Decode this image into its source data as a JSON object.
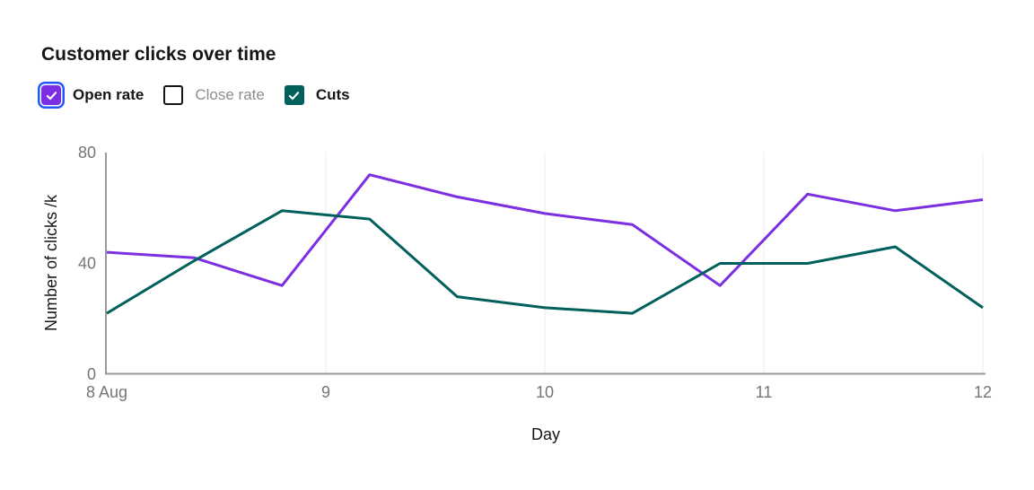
{
  "title": "Customer clicks over time",
  "legend": {
    "items": [
      {
        "label": "Open rate",
        "checked": true,
        "focused": true,
        "color": "#7c2fe0"
      },
      {
        "label": "Close rate",
        "checked": false,
        "focused": false,
        "color": "#ffffff"
      },
      {
        "label": "Cuts",
        "checked": true,
        "focused": false,
        "color": "#00605c"
      }
    ]
  },
  "chart_data": {
    "type": "line",
    "title": "Customer clicks over time",
    "xlabel": "Day",
    "ylabel": "Number of clicks /k",
    "xlim": [
      8,
      12
    ],
    "ylim": [
      0,
      80
    ],
    "grid": "vertical-only",
    "legend_position": "top",
    "x": [
      8.0,
      8.4,
      8.8,
      9.2,
      9.6,
      10.0,
      10.4,
      10.8,
      11.2,
      11.6,
      12.0
    ],
    "series": [
      {
        "name": "Open rate",
        "color": "#7c2fe0",
        "values": [
          44,
          42,
          32,
          72,
          64,
          58,
          54,
          32,
          65,
          59,
          63
        ]
      },
      {
        "name": "Cuts",
        "color": "#00605c",
        "values": [
          22,
          41,
          59,
          56,
          28,
          24,
          22,
          40,
          40,
          46,
          24
        ]
      }
    ],
    "hidden_series": [
      "Close rate"
    ],
    "x_ticks": [
      {
        "value": 8,
        "label": "8 Aug"
      },
      {
        "value": 9,
        "label": "9"
      },
      {
        "value": 10,
        "label": "10"
      },
      {
        "value": 11,
        "label": "11"
      },
      {
        "value": 12,
        "label": "12"
      }
    ],
    "y_ticks": [
      0,
      40,
      80
    ]
  },
  "colors": {
    "purple_line": "#7c2fe0",
    "teal_line": "#00605c",
    "focus_ring": "#2257ff",
    "text_primary": "#161616",
    "text_muted": "#8d8d8d",
    "axis_text": "#74757a",
    "axis_line": "#8d8d8d",
    "gridline": "#ececec"
  }
}
